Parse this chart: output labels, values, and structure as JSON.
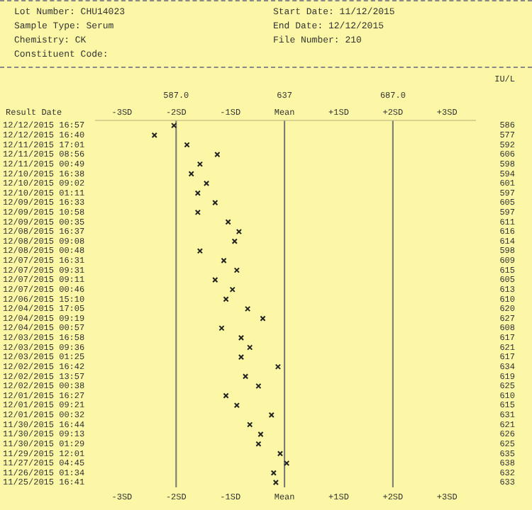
{
  "chart_data": {
    "type": "scatter",
    "ylabel": "Result Date",
    "y2label": "IU/L",
    "annotations": [
      "Lot Number: CHU14023",
      "Start Date: 11/12/2015",
      "Sample Type: Serum",
      "End Date: 12/12/2015",
      "Chemistry: CK",
      "File Number: 210",
      "Constituent Code:",
      "-3SD",
      "-2SD",
      "-1SD",
      "Mean",
      "+1SD",
      "+2SD",
      "+3SD",
      "-3SD",
      "-2SD",
      "-1SD",
      "Mean",
      "+1SD",
      "+2SD",
      "+3SD"
    ],
    "categories": [
      "12/12/2015 16:57",
      "12/12/2015 16:40",
      "12/11/2015 17:01",
      "12/11/2015 08:56",
      "12/11/2015 00:49",
      "12/10/2015 16:38",
      "12/10/2015 09:02",
      "12/10/2015 01:11",
      "12/09/2015 16:33",
      "12/09/2015 10:58",
      "12/09/2015 00:35",
      "12/08/2015 16:37",
      "12/08/2015 09:08",
      "12/08/2015 00:48",
      "12/07/2015 16:31",
      "12/07/2015 09:31",
      "12/07/2015 09:11",
      "12/07/2015 00:46",
      "12/06/2015 15:10",
      "12/04/2015 17:05",
      "12/04/2015 09:19",
      "12/04/2015 00:57",
      "12/03/2015 16:58",
      "12/03/2015 09:36",
      "12/03/2015 01:25",
      "12/02/2015 16:42",
      "12/02/2015 13:57",
      "12/02/2015 00:38",
      "12/01/2015 16:27",
      "12/01/2015 09:21",
      "12/01/2015 00:32",
      "11/30/2015 16:44",
      "11/30/2015 09:13",
      "11/30/2015 01:29",
      "11/29/2015 12:01",
      "11/27/2015 04:45",
      "11/26/2015 01:34",
      "11/25/2015 16:41"
    ],
    "values": [
      586,
      577,
      592,
      606,
      598,
      594,
      601,
      597,
      605,
      597,
      611,
      616,
      614,
      598,
      609,
      615,
      605,
      613,
      610,
      620,
      627,
      608,
      617,
      621,
      617,
      634,
      619,
      625,
      610,
      615,
      631,
      621,
      626,
      625,
      635,
      638,
      632,
      633
    ],
    "color": "#222222",
    "marker": "cross",
    "data_labels": true,
    "grid": false,
    "legend": false,
    "orientation": "horizontal",
    "xlim": [
      550,
      725
    ],
    "xticks": [
      {
        "value": 587,
        "label": "587.0"
      },
      637,
      {
        "value": 687,
        "label": "687.0"
      }
    ],
    "ref_lines": [
      {
        "axis": "x",
        "value": 587,
        "color": "#777777"
      },
      {
        "axis": "x",
        "value": 637,
        "color": "#777777"
      },
      {
        "axis": "x",
        "value": 687,
        "color": "#777777"
      }
    ]
  }
}
